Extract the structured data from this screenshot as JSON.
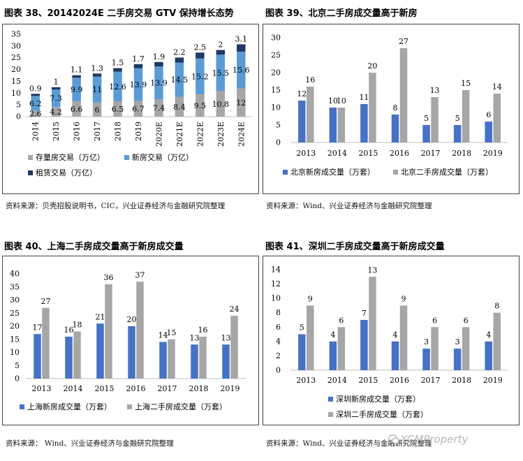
{
  "panels": [
    {
      "title": "图表 38、20142024E 二手房交易 GTV 保持增长态势",
      "source": "资料来源：贝壳招股说明书，CIC，兴业证券经济与金融研究院整理",
      "chart_data": {
        "type": "bar",
        "stacked": true,
        "categories": [
          "2014",
          "2015",
          "2016",
          "2017",
          "2018",
          "2019",
          "2020E",
          "2021E",
          "2022E",
          "2023E",
          "2024E"
        ],
        "series": [
          {
            "name": "存量房交易（万亿）",
            "color": "#a6a6a6",
            "values": [
              2.6,
              4.2,
              6.6,
              6,
              6.5,
              6.7,
              7.4,
              8.4,
              9.5,
              10.8,
              12
            ]
          },
          {
            "name": "新房交易（万亿）",
            "color": "#5b9bd5",
            "values": [
              6.2,
              7.3,
              9.9,
              11,
              12.6,
              13.9,
              13.9,
              14.5,
              15.2,
              15.5,
              15.6
            ]
          },
          {
            "name": "租赁交易（万亿）",
            "color": "#1f3864",
            "values": [
              0.9,
              1,
              1.1,
              1.3,
              1.5,
              1.7,
              1.9,
              2.2,
              2.5,
              2,
              3.1
            ]
          }
        ],
        "yticks": [
          0,
          5,
          10,
          15,
          20,
          25,
          30,
          35
        ],
        "ylim": [
          0,
          35
        ],
        "legend": "bottom",
        "grid": false
      }
    },
    {
      "title": "图表 39、北京二手房成交量高于新房",
      "source": "资料来源：Wind、兴业证券经济与金融研究院整理",
      "chart_data": {
        "type": "bar",
        "categories": [
          "2013",
          "2014",
          "2015",
          "2016",
          "2017",
          "2018",
          "2019"
        ],
        "series": [
          {
            "name": "北京新房成交量（万套）",
            "color": "#4472c4",
            "values": [
              12,
              10,
              11,
              8,
              5,
              5,
              6
            ]
          },
          {
            "name": "北京二手房成交量（万套）",
            "color": "#a6a6a6",
            "values": [
              16,
              10,
              20,
              27,
              13,
              15,
              14
            ]
          }
        ],
        "yticks": [
          0,
          5,
          10,
          15,
          20,
          25,
          30
        ],
        "ylim": [
          0,
          30
        ],
        "legend": "bottom",
        "grid": false
      }
    },
    {
      "title": "图表 40、上海二手房成交量高于新房成交量",
      "source": "资料来源： Wind、兴业证券经济与金融研究院整理",
      "chart_data": {
        "type": "bar",
        "categories": [
          "2013",
          "2014",
          "2015",
          "2016",
          "2017",
          "2018",
          "2019"
        ],
        "series": [
          {
            "name": "上海新房成交量（万套）",
            "color": "#4472c4",
            "values": [
              17,
              16,
              21,
              20,
              14,
              13,
              13
            ]
          },
          {
            "name": "上海二手房成交量（万套）",
            "color": "#a6a6a6",
            "values": [
              27,
              18,
              36,
              37,
              15,
              16,
              24
            ]
          }
        ],
        "yticks": [
          0,
          5,
          10,
          15,
          20,
          25,
          30,
          35,
          40
        ],
        "ylim": [
          0,
          40
        ],
        "legend": "bottom",
        "grid": false
      }
    },
    {
      "title": "图表 41、深圳二手房成交量高于新房成交量",
      "source": "资料来源：Wind、兴业证券经济与金融研究院整理",
      "chart_data": {
        "type": "bar",
        "categories": [
          "2013",
          "2014",
          "2015",
          "2016",
          "2017",
          "2018",
          "2019"
        ],
        "series": [
          {
            "name": "深圳新房成交量（万套）",
            "color": "#4472c4",
            "values": [
              5,
              4,
              7,
              4,
              3,
              3,
              4
            ]
          },
          {
            "name": "深圳二手房成交量（万套）",
            "color": "#a6a6a6",
            "values": [
              9,
              6,
              13,
              9,
              6,
              6,
              8
            ]
          }
        ],
        "yticks": [
          0,
          2,
          4,
          6,
          8,
          10,
          12,
          14
        ],
        "ylim": [
          0,
          14
        ],
        "legend": "bottom",
        "grid": false
      }
    }
  ],
  "watermark": {
    "text": "YCMProperty",
    "icon": "wechat-icon"
  }
}
